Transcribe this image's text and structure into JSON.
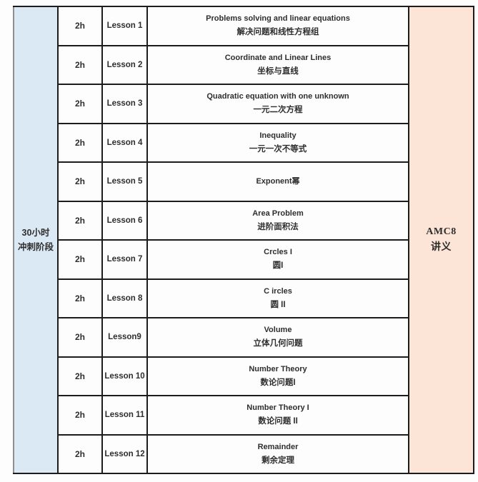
{
  "page": {
    "background_color": "#fdfdfd",
    "border_color": "#1c1c1c",
    "text_color": "#2e2e2e"
  },
  "table": {
    "left_header": {
      "line1": "30小时",
      "line2": "冲刺阶段",
      "bg": "#dbe9f5"
    },
    "right_header": {
      "line1": "AMC8",
      "line2": "讲义",
      "bg": "#fce4d6"
    },
    "rows": [
      {
        "duration": "2h",
        "lesson": "Lesson 1",
        "title_en": "Problems solving and linear equations",
        "title_zh": "解决问题和线性方程组"
      },
      {
        "duration": "2h",
        "lesson": "Lesson 2",
        "title_en": "Coordinate and Linear Lines",
        "title_zh": "坐标与直线"
      },
      {
        "duration": "2h",
        "lesson": "Lesson 3",
        "title_en": "Quadratic equation with one unknown",
        "title_zh": "一元二次方程"
      },
      {
        "duration": "2h",
        "lesson": "Lesson 4",
        "title_en": "Inequality",
        "title_zh": "一元一次不等式"
      },
      {
        "duration": "2h",
        "lesson": "Lesson 5",
        "title_en": "Exponent幂",
        "title_zh": ""
      },
      {
        "duration": "2h",
        "lesson": "Lesson 6",
        "title_en": "Area Problem",
        "title_zh": "进阶面积法"
      },
      {
        "duration": "2h",
        "lesson": "Lesson 7",
        "title_en": "Crcles I",
        "title_zh": "圆I"
      },
      {
        "duration": "2h",
        "lesson": "Lesson 8",
        "title_en": "C ircles",
        "title_zh": "圆 II"
      },
      {
        "duration": "2h",
        "lesson": "Lesson9",
        "title_en": "Volume",
        "title_zh": "立体几何问题"
      },
      {
        "duration": "2h",
        "lesson": "Lesson 10",
        "title_en": "Number Theory",
        "title_zh": "数论问题I"
      },
      {
        "duration": "2h",
        "lesson": "Lesson 11",
        "title_en": "Number Theory I",
        "title_zh": "数论问题 II"
      },
      {
        "duration": "2h",
        "lesson": "Lesson 12",
        "title_en": "Remainder",
        "title_zh": "剩余定理"
      }
    ]
  }
}
